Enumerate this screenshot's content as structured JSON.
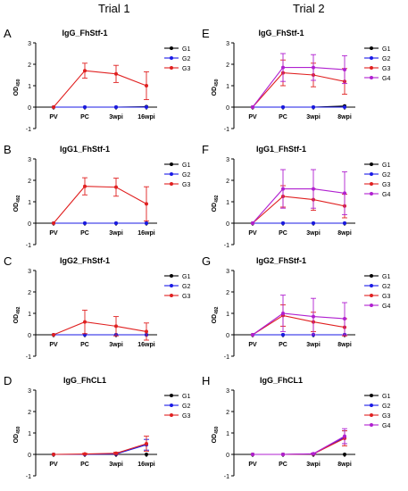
{
  "trial_titles": [
    "Trial 1",
    "Trial 2"
  ],
  "colors": {
    "G1": "#000000",
    "G2": "#1a1ae6",
    "G3": "#e02020",
    "G4": "#b020d0"
  },
  "chart_data": [
    {
      "panel": "A",
      "type": "line",
      "title": "IgG_FhStf-1",
      "ylabel": "OD450",
      "ylabel_main": "OD",
      "ylabel_sub": "450",
      "ylim": [
        -1,
        3
      ],
      "yticks": [
        -1,
        0,
        1,
        2,
        3
      ],
      "categories": [
        "PV",
        "PC",
        "3wpi",
        "16wpi"
      ],
      "legend_position": "right",
      "series": [
        {
          "name": "G1",
          "values": [
            0,
            0,
            0,
            0.02
          ],
          "err": [
            0,
            0,
            0,
            0
          ]
        },
        {
          "name": "G2",
          "values": [
            0,
            0,
            0,
            0
          ],
          "err": [
            0,
            0,
            0,
            0
          ]
        },
        {
          "name": "G3",
          "values": [
            0,
            1.7,
            1.55,
            1.0
          ],
          "err": [
            0,
            0.35,
            0.4,
            0.65
          ]
        }
      ]
    },
    {
      "panel": "B",
      "type": "line",
      "title": "IgG1_FhStf-1",
      "ylabel": "OD492",
      "ylabel_main": "OD",
      "ylabel_sub": "492",
      "ylim": [
        -1,
        3
      ],
      "yticks": [
        -1,
        0,
        1,
        2,
        3
      ],
      "categories": [
        "PV",
        "PC",
        "3wpi",
        "16wpi"
      ],
      "legend_position": "right",
      "series": [
        {
          "name": "G1",
          "values": [
            0,
            0,
            0,
            0
          ],
          "err": [
            0,
            0,
            0,
            0
          ]
        },
        {
          "name": "G2",
          "values": [
            0,
            0,
            0,
            0
          ],
          "err": [
            0,
            0,
            0,
            0
          ]
        },
        {
          "name": "G3",
          "values": [
            0,
            1.72,
            1.68,
            0.9
          ],
          "err": [
            0,
            0.4,
            0.42,
            0.8
          ]
        }
      ]
    },
    {
      "panel": "C",
      "type": "line",
      "title": "IgG2_FhStf-1",
      "ylabel": "OD492",
      "ylabel_main": "OD",
      "ylabel_sub": "492",
      "ylim": [
        -1,
        3
      ],
      "yticks": [
        -1,
        0,
        1,
        2,
        3
      ],
      "categories": [
        "PV",
        "PC",
        "3wpi",
        "16wpi"
      ],
      "legend_position": "right",
      "series": [
        {
          "name": "G1",
          "values": [
            0,
            0,
            0,
            0
          ],
          "err": [
            0,
            0,
            0,
            0
          ]
        },
        {
          "name": "G2",
          "values": [
            0,
            0,
            0,
            0
          ],
          "err": [
            0,
            0,
            0,
            0
          ]
        },
        {
          "name": "G3",
          "values": [
            0,
            0.6,
            0.4,
            0.15
          ],
          "err": [
            0,
            0.55,
            0.45,
            0.4
          ]
        }
      ]
    },
    {
      "panel": "D",
      "type": "line",
      "title": "IgG_FhCL1",
      "ylabel": "OD450",
      "ylabel_main": "OD",
      "ylabel_sub": "450",
      "ylim": [
        -1,
        3
      ],
      "yticks": [
        -1,
        0,
        1,
        2,
        3
      ],
      "categories": [
        "PV",
        "PC",
        "3wpi",
        "16wpi"
      ],
      "legend_position": "right",
      "series": [
        {
          "name": "G1",
          "values": [
            0,
            0,
            0,
            0
          ],
          "err": [
            0,
            0,
            0,
            0
          ]
        },
        {
          "name": "G2",
          "values": [
            0,
            0,
            0.02,
            0.45
          ],
          "err": [
            0,
            0,
            0.03,
            0.25
          ]
        },
        {
          "name": "G3",
          "values": [
            0,
            0.02,
            0.05,
            0.5
          ],
          "err": [
            0,
            0.03,
            0.05,
            0.35
          ]
        }
      ]
    },
    {
      "panel": "E",
      "type": "line",
      "title": "IgG_FhStf-1",
      "ylabel": "OD450",
      "ylabel_main": "OD",
      "ylabel_sub": "450",
      "ylim": [
        -1,
        3
      ],
      "yticks": [
        -1,
        0,
        1,
        2,
        3
      ],
      "categories": [
        "PV",
        "PC",
        "3wpi",
        "8wpi"
      ],
      "legend_position": "right",
      "series": [
        {
          "name": "G1",
          "values": [
            0,
            0,
            0,
            0.05
          ],
          "err": [
            0,
            0,
            0,
            0
          ]
        },
        {
          "name": "G2",
          "values": [
            0,
            0,
            0,
            0
          ],
          "err": [
            0,
            0,
            0,
            0
          ]
        },
        {
          "name": "G3",
          "values": [
            0,
            1.6,
            1.5,
            1.2
          ],
          "err": [
            0,
            0.6,
            0.55,
            0.6
          ]
        },
        {
          "name": "G4",
          "values": [
            0,
            1.85,
            1.85,
            1.75
          ],
          "err": [
            0,
            0.65,
            0.6,
            0.65
          ]
        }
      ]
    },
    {
      "panel": "F",
      "type": "line",
      "title": "IgG1_FhStf-1",
      "ylabel": "OD492",
      "ylabel_main": "OD",
      "ylabel_sub": "492",
      "ylim": [
        -1,
        3
      ],
      "yticks": [
        -1,
        0,
        1,
        2,
        3
      ],
      "categories": [
        "PV",
        "PC",
        "3wpi",
        "8wpi"
      ],
      "legend_position": "right",
      "series": [
        {
          "name": "G1",
          "values": [
            0,
            0,
            0,
            0
          ],
          "err": [
            0,
            0,
            0,
            0
          ]
        },
        {
          "name": "G2",
          "values": [
            0,
            0,
            0,
            0
          ],
          "err": [
            0,
            0,
            0,
            0
          ]
        },
        {
          "name": "G3",
          "values": [
            0,
            1.25,
            1.1,
            0.8
          ],
          "err": [
            0,
            0.5,
            0.5,
            0.55
          ]
        },
        {
          "name": "G4",
          "values": [
            0,
            1.6,
            1.6,
            1.4
          ],
          "err": [
            0,
            0.9,
            0.9,
            1.0
          ]
        }
      ]
    },
    {
      "panel": "G",
      "type": "line",
      "title": "IgG2_FhStf-1",
      "ylabel": "OD492",
      "ylabel_main": "OD",
      "ylabel_sub": "492",
      "ylim": [
        -1,
        3
      ],
      "yticks": [
        -1,
        0,
        1,
        2,
        3
      ],
      "categories": [
        "PV",
        "PC",
        "3wpi",
        "8wpi"
      ],
      "legend_position": "right",
      "series": [
        {
          "name": "G1",
          "values": [
            0,
            0,
            0,
            0
          ],
          "err": [
            0,
            0,
            0,
            0
          ]
        },
        {
          "name": "G2",
          "values": [
            0,
            0,
            0,
            0
          ],
          "err": [
            0,
            0,
            0,
            0
          ]
        },
        {
          "name": "G3",
          "values": [
            0,
            0.9,
            0.6,
            0.35
          ],
          "err": [
            0,
            0.5,
            0.45,
            0.4
          ]
        },
        {
          "name": "G4",
          "values": [
            0,
            1.0,
            0.85,
            0.75
          ],
          "err": [
            0,
            0.85,
            0.85,
            0.75
          ]
        }
      ]
    },
    {
      "panel": "H",
      "type": "line",
      "title": "IgG_FhCL1",
      "ylabel": "OD450",
      "ylabel_main": "OD",
      "ylabel_sub": "450",
      "ylim": [
        -1,
        3
      ],
      "yticks": [
        -1,
        0,
        1,
        2,
        3
      ],
      "categories": [
        "PV",
        "PC",
        "3wpi",
        "8wpi"
      ],
      "legend_position": "right",
      "series": [
        {
          "name": "G1",
          "values": [
            0,
            0,
            0,
            0
          ],
          "err": [
            0,
            0,
            0,
            0
          ]
        },
        {
          "name": "G2",
          "values": [
            0,
            0,
            0.02,
            0.8
          ],
          "err": [
            0,
            0,
            0.02,
            0.3
          ]
        },
        {
          "name": "G3",
          "values": [
            0,
            0,
            0.02,
            0.75
          ],
          "err": [
            0,
            0,
            0.03,
            0.35
          ]
        },
        {
          "name": "G4",
          "values": [
            0,
            0,
            0.03,
            0.85
          ],
          "err": [
            0,
            0,
            0.03,
            0.35
          ]
        }
      ]
    }
  ]
}
